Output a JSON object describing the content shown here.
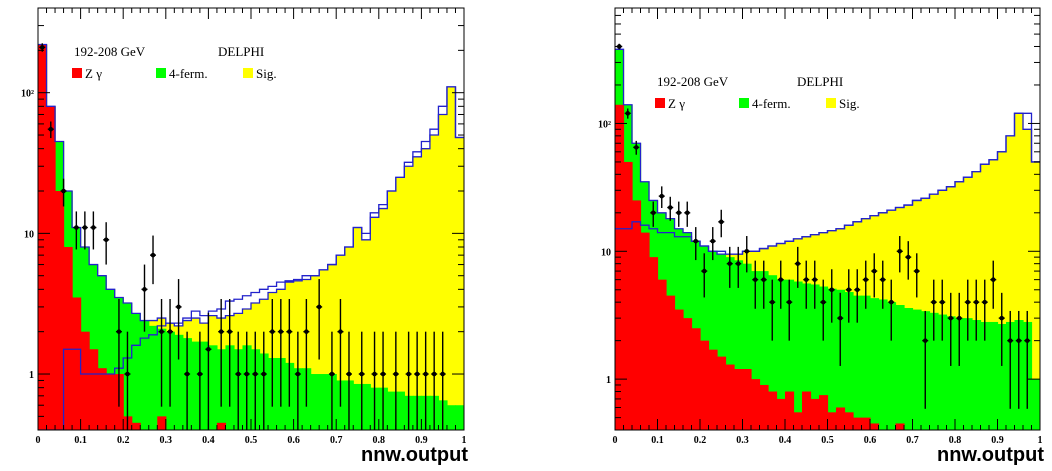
{
  "chart_data": [
    {
      "type": "bar",
      "stacked": true,
      "y_scale": "log",
      "xlim": [
        0,
        1
      ],
      "ylim": [
        0.4,
        400
      ],
      "x_ticks": [
        "0",
        "0.1",
        "0.2",
        "0.3",
        "0.4",
        "0.5",
        "0.6",
        "0.7",
        "0.8",
        "0.9",
        "1"
      ],
      "y_ticks": [
        "1",
        "10",
        "10²"
      ],
      "xlabel": "nnw.output",
      "annotations": [
        "192-208 GeV",
        "DELPHI"
      ],
      "legend": [
        {
          "label": "Z γ",
          "color": "#ff0000"
        },
        {
          "label": "4-ferm.",
          "color": "#00ff00"
        },
        {
          "label": "Sig.",
          "color": "#ffff00"
        }
      ],
      "bin_width": 0.02,
      "series": [
        {
          "name": "Z γ",
          "color": "#ff0000",
          "values": [
            220,
            80,
            20,
            8,
            3.5,
            2,
            1.5,
            1.1,
            1,
            1,
            0.5,
            0.45,
            0.4,
            0.4,
            0.5,
            0.4,
            0.4,
            0.4,
            0.4,
            0.4,
            0.4,
            0.45,
            0.4,
            0.4,
            0.4,
            0.4,
            0.4,
            0.4,
            0.4,
            0.4,
            0.4,
            0.4,
            0.4,
            0.4,
            0.4,
            0.4,
            0.4,
            0.4,
            0.4,
            0.4,
            0.4,
            0.4,
            0.4,
            0.4,
            0.4,
            0.4,
            0.4,
            0.4,
            0.4,
            0.4
          ]
        },
        {
          "name": "4-ferm.",
          "color": "#00ff00",
          "values": [
            220,
            80,
            45,
            20,
            11,
            8,
            6,
            5,
            4,
            3.5,
            3.2,
            2.7,
            2.4,
            2.2,
            2.1,
            2,
            1.9,
            1.8,
            1.7,
            1.7,
            1.6,
            1.5,
            1.6,
            1.5,
            1.6,
            1.5,
            1.4,
            1.3,
            1.3,
            1.2,
            1.1,
            1.1,
            1,
            1,
            1,
            0.9,
            0.9,
            0.85,
            0.85,
            0.8,
            0.8,
            0.75,
            0.75,
            0.7,
            0.7,
            0.7,
            0.7,
            0.65,
            0.6,
            0.6
          ]
        },
        {
          "name": "Sig.",
          "color": "#ffff00",
          "values": [
            220,
            80,
            45,
            20,
            11,
            8,
            6,
            5,
            4,
            3.5,
            3.2,
            2.7,
            2.4,
            2.4,
            2.5,
            2.3,
            2.2,
            2.4,
            2.5,
            2.3,
            2.6,
            2.5,
            2.6,
            2.7,
            2.9,
            3.2,
            3.4,
            3.8,
            4,
            4.5,
            4.6,
            4.7,
            5,
            5.5,
            6,
            7,
            8,
            11,
            9,
            13,
            15,
            20,
            25,
            30,
            35,
            40,
            50,
            70,
            110,
            48
          ]
        },
        {
          "name": "Sig. (separate)",
          "color": "#0000ff",
          "values": [
            0.4,
            0.4,
            0.4,
            1.5,
            1.5,
            1,
            1,
            1,
            1,
            1.1,
            1.3,
            1.6,
            1.8,
            1.9,
            2.2,
            2.3,
            2.3,
            2.5,
            2.8,
            2.6,
            2.8,
            2.9,
            3.3,
            3.4,
            3.6,
            3.8,
            4,
            4.2,
            4.5,
            4.6,
            4.7,
            5,
            5,
            5.5,
            6,
            7,
            8,
            11,
            10,
            14,
            16,
            20,
            25,
            32,
            38,
            45,
            55,
            80,
            110,
            48
          ]
        }
      ],
      "data_points": {
        "x": [
          0.01,
          0.03,
          0.06,
          0.09,
          0.11,
          0.13,
          0.16,
          0.19,
          0.21,
          0.25,
          0.27,
          0.29,
          0.31,
          0.33,
          0.35,
          0.38,
          0.4,
          0.43,
          0.45,
          0.47,
          0.49,
          0.51,
          0.53,
          0.55,
          0.57,
          0.59,
          0.61,
          0.63,
          0.66,
          0.69,
          0.71,
          0.73,
          0.76,
          0.79,
          0.81,
          0.84,
          0.87,
          0.89,
          0.91,
          0.93,
          0.95
        ],
        "y": [
          210,
          55,
          20,
          11,
          11,
          11,
          9,
          2,
          1,
          4,
          7,
          2,
          2,
          3,
          1,
          1,
          1.5,
          2,
          2,
          1,
          1,
          1,
          1,
          2,
          2,
          2,
          1,
          2,
          3,
          1,
          2,
          1,
          1,
          1,
          1,
          1,
          1,
          1,
          1,
          1,
          1
        ]
      }
    },
    {
      "type": "bar",
      "stacked": true,
      "y_scale": "log",
      "xlim": [
        0,
        1
      ],
      "ylim": [
        0.4,
        800
      ],
      "x_ticks": [
        "0",
        "0.1",
        "0.2",
        "0.3",
        "0.4",
        "0.5",
        "0.6",
        "0.7",
        "0.8",
        "0.9",
        "1"
      ],
      "y_ticks": [
        "1",
        "10",
        "10²"
      ],
      "xlabel": "nnw.output",
      "annotations": [
        "192-208 GeV",
        "DELPHI"
      ],
      "legend": [
        {
          "label": "Z γ",
          "color": "#ff0000"
        },
        {
          "label": "4-ferm.",
          "color": "#00ff00"
        },
        {
          "label": "Sig.",
          "color": "#ffff00"
        }
      ],
      "bin_width": 0.02,
      "series": [
        {
          "name": "Z γ",
          "color": "#ff0000",
          "values": [
            140,
            50,
            25,
            14,
            9,
            6,
            4.5,
            3.5,
            3,
            2.5,
            2,
            1.7,
            1.5,
            1.3,
            1.2,
            1.2,
            1.0,
            0.9,
            0.8,
            0.7,
            0.8,
            0.55,
            0.8,
            0.7,
            0.75,
            0.55,
            0.6,
            0.55,
            0.5,
            0.5,
            0.45,
            0.4,
            0.4,
            0.45,
            0.4,
            0.4,
            0.4,
            0.4,
            0.4,
            0.4,
            0.4,
            0.4,
            0.4,
            0.4,
            0.4,
            0.4,
            0.4,
            0.4,
            0.4,
            0.4
          ]
        },
        {
          "name": "4-ferm.",
          "color": "#00ff00",
          "values": [
            380,
            140,
            70,
            35,
            25,
            20,
            18,
            15,
            14,
            12,
            11,
            10,
            9.5,
            9,
            8.5,
            8,
            7,
            7,
            6.5,
            6,
            6,
            5.8,
            5.6,
            5.5,
            5.3,
            5.1,
            5,
            4.8,
            4.5,
            4.5,
            4.3,
            4.2,
            4,
            3.8,
            3.6,
            3.5,
            3.4,
            3.3,
            3.2,
            3.1,
            3,
            3,
            2.9,
            2.8,
            2.8,
            2.7,
            2.8,
            2.9,
            2.8,
            1
          ]
        },
        {
          "name": "Sig.",
          "color": "#ffff00",
          "values": [
            380,
            140,
            70,
            35,
            25,
            20,
            18,
            15,
            14,
            12,
            11,
            10,
            9.5,
            9.5,
            9.5,
            10,
            10,
            10.5,
            11,
            11.5,
            12,
            12.5,
            13,
            13.5,
            14,
            14.5,
            15,
            16,
            17,
            18,
            19,
            20,
            21,
            22,
            23,
            25,
            26,
            28,
            30,
            32,
            35,
            38,
            42,
            48,
            52,
            60,
            80,
            120,
            90,
            50
          ]
        },
        {
          "name": "Sig. (separate)",
          "color": "#0000ff",
          "values": [
            15,
            15,
            17,
            16,
            15,
            14,
            14,
            13,
            13,
            12,
            11,
            10,
            10,
            9.5,
            9.5,
            10,
            10,
            10.5,
            11,
            11.5,
            12,
            12.5,
            13,
            13.5,
            14,
            14.5,
            15,
            16,
            17,
            18,
            19,
            20,
            21,
            22,
            23,
            25,
            26,
            28,
            30,
            32,
            35,
            38,
            42,
            48,
            52,
            60,
            80,
            120,
            120,
            50
          ]
        }
      ],
      "data_points": {
        "x": [
          0.01,
          0.03,
          0.05,
          0.09,
          0.11,
          0.13,
          0.15,
          0.17,
          0.19,
          0.21,
          0.23,
          0.25,
          0.27,
          0.29,
          0.31,
          0.33,
          0.35,
          0.37,
          0.39,
          0.41,
          0.43,
          0.45,
          0.47,
          0.49,
          0.51,
          0.53,
          0.55,
          0.57,
          0.59,
          0.61,
          0.63,
          0.65,
          0.67,
          0.69,
          0.71,
          0.73,
          0.75,
          0.77,
          0.79,
          0.81,
          0.83,
          0.85,
          0.87,
          0.89,
          0.91,
          0.93,
          0.95,
          0.97
        ],
        "y": [
          400,
          120,
          65,
          20,
          27,
          22,
          20,
          20,
          12,
          7,
          12,
          17,
          8,
          8,
          10,
          6,
          6,
          4,
          6,
          4,
          8,
          6,
          6,
          4,
          5,
          3,
          5,
          5,
          6,
          7,
          6,
          4,
          10,
          9,
          7,
          2,
          4,
          4,
          3,
          3,
          4,
          4,
          4,
          6,
          3,
          2,
          2,
          2
        ]
      }
    }
  ]
}
